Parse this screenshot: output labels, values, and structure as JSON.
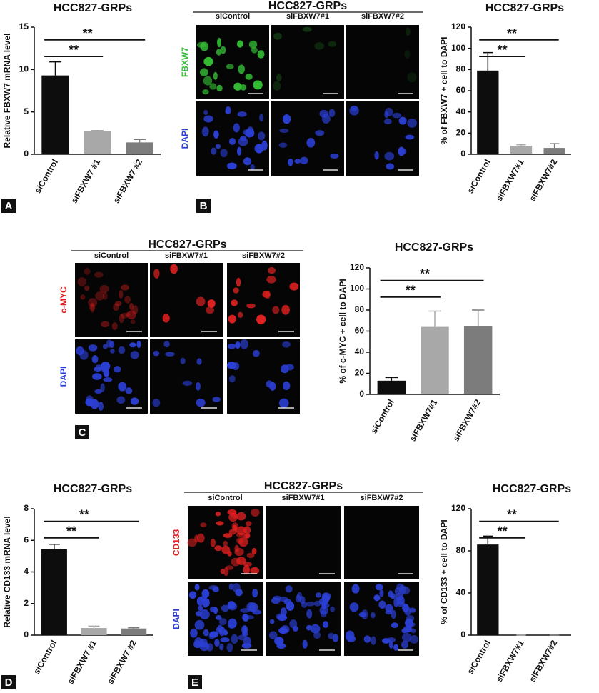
{
  "chart_data": [
    {
      "type": "bar",
      "title": "HCC827-GRPs",
      "ylabel": "Relative FBXW7 mRNA level",
      "categories": [
        "siControl",
        "siFBXW7 #1",
        "siFBXW7 #2"
      ],
      "values": [
        9.3,
        2.7,
        1.4
      ],
      "errors": [
        1.6,
        0.1,
        0.35
      ],
      "colors": [
        "#0d0d0d",
        "#a8a8a8",
        "#7c7c7c"
      ],
      "ylim": [
        0,
        15
      ],
      "yticks": [
        0,
        5,
        10,
        15
      ],
      "annotations": [
        "**",
        "**"
      ]
    },
    {
      "type": "bar",
      "title": "HCC827-GRPs",
      "ylabel": "% of FBXW7 + cell to DAPI",
      "categories": [
        "siControl",
        "siFBXW7#1",
        "siFBXW7#2"
      ],
      "values": [
        79,
        8,
        6
      ],
      "errors": [
        17,
        1,
        4
      ],
      "colors": [
        "#0d0d0d",
        "#a8a8a8",
        "#7c7c7c"
      ],
      "ylim": [
        0,
        120
      ],
      "yticks": [
        0,
        20,
        40,
        60,
        80,
        100,
        120
      ],
      "annotations": [
        "**",
        "**"
      ]
    },
    {
      "type": "bar",
      "title": "HCC827-GRPs",
      "ylabel": "% of c-MYC + cell to DAPI",
      "categories": [
        "siControl",
        "siFBXW7#1",
        "siFBXW7#2"
      ],
      "values": [
        13,
        64,
        65
      ],
      "errors": [
        3,
        15,
        15
      ],
      "colors": [
        "#0d0d0d",
        "#a8a8a8",
        "#7c7c7c"
      ],
      "ylim": [
        0,
        120
      ],
      "yticks": [
        0,
        20,
        40,
        60,
        80,
        100,
        120
      ],
      "annotations": [
        "**",
        "**"
      ]
    },
    {
      "type": "bar",
      "title": "HCC827-GRPs",
      "ylabel": "Relative CD133 mRNA level",
      "categories": [
        "siControl",
        "siFBXW7 #1",
        "siFBXW7 #2"
      ],
      "values": [
        5.45,
        0.45,
        0.42
      ],
      "errors": [
        0.3,
        0.12,
        0.05
      ],
      "colors": [
        "#0d0d0d",
        "#a8a8a8",
        "#7c7c7c"
      ],
      "ylim": [
        0,
        8
      ],
      "yticks": [
        0,
        2,
        4,
        6,
        8
      ],
      "annotations": [
        "**",
        "**"
      ]
    },
    {
      "type": "bar",
      "title": "HCC827-GRPs",
      "ylabel": "% of CD133 + cell to DAPI",
      "categories": [
        "siControl",
        "siFBXW7#1",
        "siFBXW7#2"
      ],
      "values": [
        86,
        0,
        0
      ],
      "errors": [
        8,
        0,
        0
      ],
      "colors": [
        "#0d0d0d",
        "#a8a8a8",
        "#7c7c7c"
      ],
      "ylim": [
        0,
        120
      ],
      "yticks": [
        0,
        40,
        80,
        120
      ],
      "annotations": [
        "**",
        "**"
      ]
    }
  ],
  "figure": {
    "panel_labels": [
      "A",
      "B",
      "C",
      "D",
      "E"
    ],
    "image_panels": [
      {
        "title": "HCC827-GRPs",
        "columns": [
          "siControl",
          "siFBXW7#1",
          "siFBXW7#2"
        ],
        "rows": [
          {
            "label": "FBXW7",
            "color": "#35c035"
          },
          {
            "label": "DAPI",
            "color": "#2b3fd4"
          }
        ]
      },
      {
        "title": "HCC827-GRPs",
        "columns": [
          "siControl",
          "siFBXW7#1",
          "siFBXW7#2"
        ],
        "rows": [
          {
            "label": "c-MYC",
            "color": "#e02020"
          },
          {
            "label": "DAPI",
            "color": "#2b3fd4"
          }
        ]
      },
      {
        "title": "HCC827-GRPs",
        "columns": [
          "siControl",
          "siFBXW7#1",
          "siFBXW7#2"
        ],
        "rows": [
          {
            "label": "CD133",
            "color": "#e02020"
          },
          {
            "label": "DAPI",
            "color": "#2b3fd4"
          }
        ]
      }
    ]
  }
}
